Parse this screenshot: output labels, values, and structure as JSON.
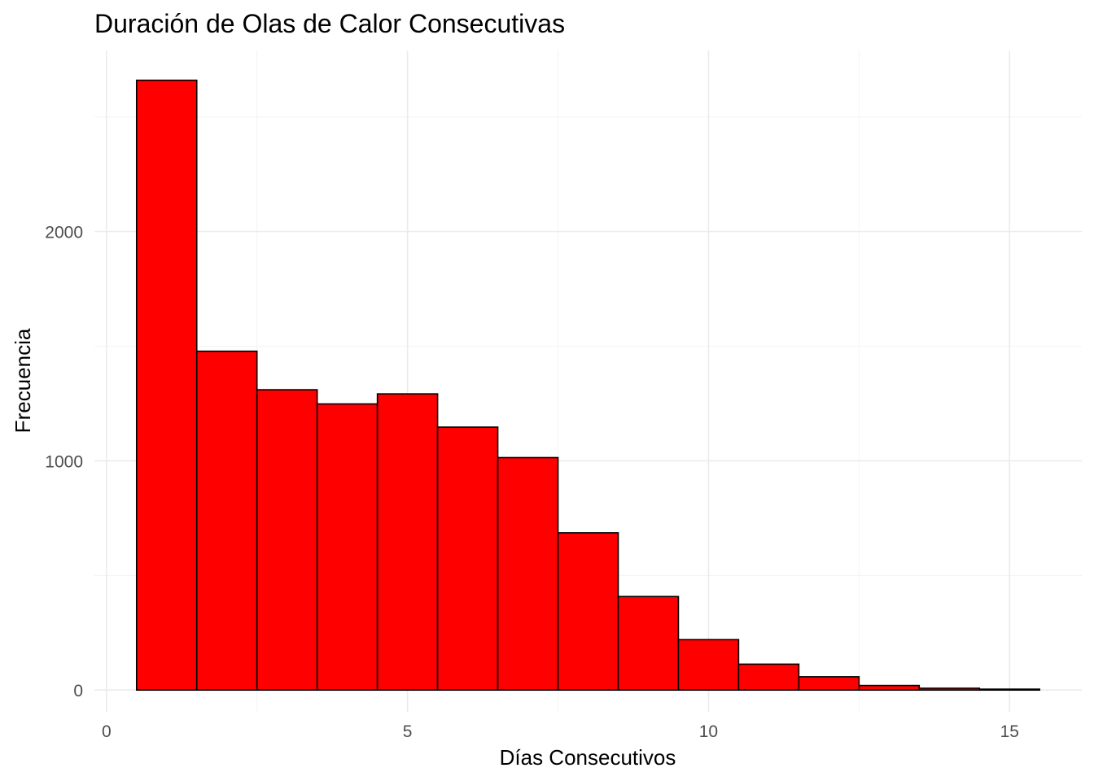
{
  "chart_data": {
    "type": "bar",
    "title": "Duración de Olas de Calor Consecutivas",
    "xlabel": "Días Consecutivos",
    "ylabel": "Frecuencia",
    "categories": [
      1,
      2,
      3,
      4,
      5,
      6,
      7,
      8,
      9,
      10,
      11,
      12,
      13,
      14,
      15
    ],
    "values": [
      2660,
      1478,
      1310,
      1248,
      1292,
      1147,
      1014,
      686,
      408,
      220,
      113,
      58,
      20,
      8,
      4
    ],
    "bin_width": 1,
    "xlim": [
      -0.2,
      16.2
    ],
    "ylim": [
      -95,
      2790
    ],
    "x_ticks": [
      0,
      5,
      10,
      15
    ],
    "y_ticks": [
      0,
      1000,
      2000
    ],
    "x_tick_labels": [
      "0",
      "5",
      "10",
      "15"
    ],
    "y_tick_labels": [
      "0",
      "1000",
      "2000"
    ],
    "bar_color": "#ff0000",
    "bar_border_color": "#000000",
    "grid": true,
    "legend": "none"
  }
}
